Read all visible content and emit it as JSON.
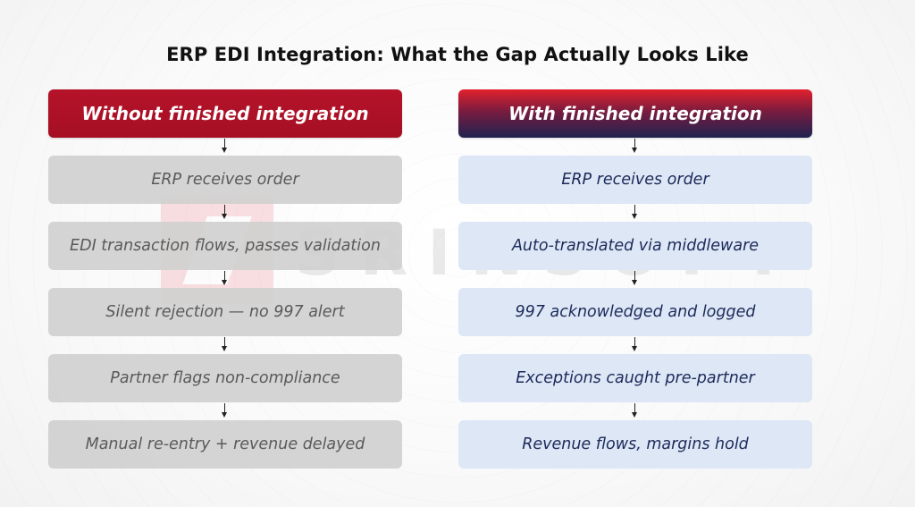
{
  "title": "ERP EDI Integration: What the Gap Actually Looks Like",
  "watermark": {
    "text": "SRINSOFT"
  },
  "left": {
    "header": "Without finished integration",
    "steps": [
      "ERP receives order",
      "EDI transaction flows, passes validation",
      "Silent rejection — no 997 alert",
      "Partner flags non-compliance",
      "Manual re-entry + revenue delayed"
    ]
  },
  "right": {
    "header": "With finished integration",
    "steps": [
      "ERP receives order",
      "Auto-translated via middleware",
      "997 acknowledged and logged",
      "Exceptions caught pre-partner",
      "Revenue flows, margins hold"
    ]
  },
  "colors": {
    "left_header": "#a50f24",
    "right_header_top": "#e2202c",
    "right_header_bottom": "#1e2250",
    "left_step_bg": "#cfcfcf",
    "right_step_bg": "#dde7f5",
    "right_step_text": "#1c2a5a"
  }
}
